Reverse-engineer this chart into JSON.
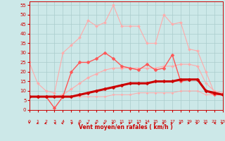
{
  "title": "",
  "xlabel": "Vent moyen/en rafales ( km/h )",
  "xlim": [
    0,
    23
  ],
  "ylim": [
    0,
    57
  ],
  "yticks": [
    0,
    5,
    10,
    15,
    20,
    25,
    30,
    35,
    40,
    45,
    50,
    55
  ],
  "xticks": [
    0,
    1,
    2,
    3,
    4,
    5,
    6,
    7,
    8,
    9,
    10,
    11,
    12,
    13,
    14,
    15,
    16,
    17,
    18,
    19,
    20,
    21,
    22,
    23
  ],
  "background_color": "#cce8e8",
  "grid_color": "#aacccc",
  "series": [
    {
      "name": "rafales_max",
      "color": "#ffaaaa",
      "x": [
        0,
        1,
        2,
        3,
        4,
        5,
        6,
        7,
        8,
        9,
        10,
        11,
        12,
        13,
        14,
        15,
        16,
        17,
        18,
        19,
        20,
        21,
        22,
        23
      ],
      "y": [
        25,
        14,
        10,
        9,
        30,
        34,
        38,
        47,
        44,
        46,
        55,
        44,
        44,
        44,
        35,
        35,
        50,
        45,
        46,
        32,
        31,
        20,
        9,
        8
      ],
      "marker": "D",
      "markersize": 2.0,
      "linewidth": 0.8,
      "zorder": 2
    },
    {
      "name": "rafales_moy",
      "color": "#ffaaaa",
      "x": [
        0,
        1,
        2,
        3,
        4,
        5,
        6,
        7,
        8,
        9,
        10,
        11,
        12,
        13,
        14,
        15,
        16,
        17,
        18,
        19,
        20,
        21,
        22,
        23
      ],
      "y": [
        7,
        7,
        7,
        7,
        8,
        11,
        14,
        17,
        19,
        21,
        22,
        22,
        22,
        22,
        22,
        22,
        23,
        23,
        24,
        24,
        23,
        14,
        10,
        9
      ],
      "marker": "D",
      "markersize": 2.0,
      "linewidth": 0.8,
      "zorder": 2
    },
    {
      "name": "vent_moyen_max",
      "color": "#ff5555",
      "x": [
        0,
        1,
        2,
        3,
        4,
        5,
        6,
        7,
        8,
        9,
        10,
        11,
        12,
        13,
        14,
        15,
        16,
        17,
        18,
        19,
        20,
        21,
        22,
        23
      ],
      "y": [
        7,
        7,
        7,
        1,
        7,
        20,
        25,
        25,
        27,
        30,
        27,
        23,
        22,
        21,
        24,
        21,
        22,
        29,
        15,
        16,
        16,
        10,
        8,
        8
      ],
      "marker": "D",
      "markersize": 2.5,
      "linewidth": 1.0,
      "zorder": 3
    },
    {
      "name": "vent_moyen_min",
      "color": "#ffaaaa",
      "x": [
        0,
        1,
        2,
        3,
        4,
        5,
        6,
        7,
        8,
        9,
        10,
        11,
        12,
        13,
        14,
        15,
        16,
        17,
        18,
        19,
        20,
        21,
        22,
        23
      ],
      "y": [
        7,
        7,
        7,
        7,
        7,
        7,
        7,
        7,
        7,
        7,
        8,
        8,
        8,
        9,
        9,
        9,
        9,
        9,
        10,
        10,
        10,
        8,
        8,
        8
      ],
      "marker": "D",
      "markersize": 1.5,
      "linewidth": 0.7,
      "zorder": 2
    },
    {
      "name": "vent_moyen_moy",
      "color": "#cc0000",
      "x": [
        0,
        1,
        2,
        3,
        4,
        5,
        6,
        7,
        8,
        9,
        10,
        11,
        12,
        13,
        14,
        15,
        16,
        17,
        18,
        19,
        20,
        21,
        22,
        23
      ],
      "y": [
        7,
        7,
        7,
        7,
        7,
        7,
        8,
        9,
        10,
        11,
        12,
        13,
        14,
        14,
        14,
        15,
        15,
        15,
        16,
        16,
        16,
        10,
        9,
        8
      ],
      "marker": "D",
      "markersize": 2.5,
      "linewidth": 2.2,
      "zorder": 4
    }
  ],
  "wind_arrows": {
    "color": "#cc0000",
    "x_positions": [
      0,
      1,
      2,
      3,
      4,
      5,
      6,
      7,
      8,
      9,
      10,
      11,
      12,
      13,
      14,
      15,
      16,
      17,
      18,
      19,
      20,
      21,
      22,
      23
    ],
    "directions": [
      180,
      210,
      225,
      270,
      315,
      45,
      90,
      90,
      90,
      90,
      90,
      90,
      90,
      90,
      90,
      90,
      90,
      90,
      90,
      90,
      90,
      225,
      270,
      90
    ]
  }
}
